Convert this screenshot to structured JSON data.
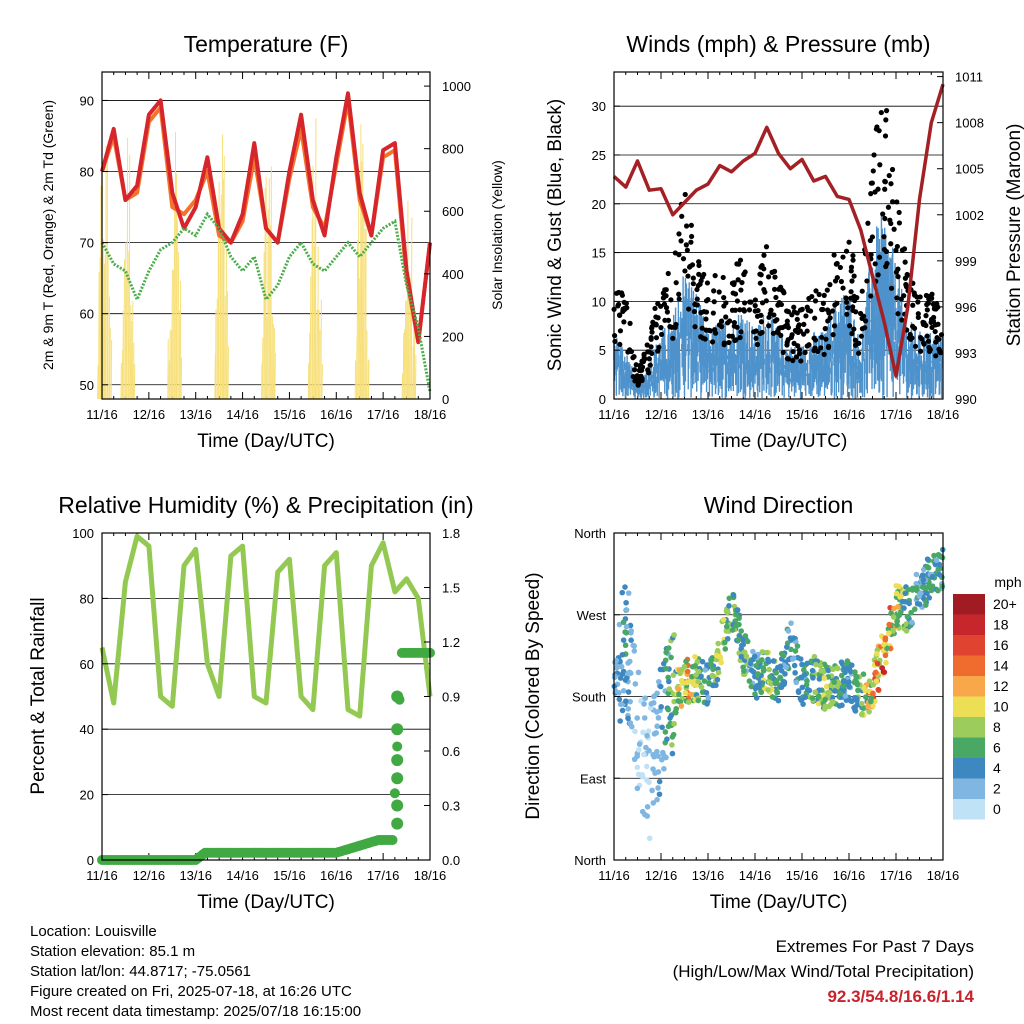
{
  "footer": {
    "location": "Location: Louisville",
    "elevation": "Station elevation: 85.1 m",
    "latlon": "Station lat/lon: 44.8717; -75.0561",
    "created": "Figure created on Fri, 2025-07-18, at 16:26 UTC",
    "recent": "Most recent data timestamp: 2025/07/18 16:15:00",
    "extremes_title": "Extremes For Past 7 Days",
    "extremes_sub": "(High/Low/Max Wind/Total Precipitation)",
    "extremes_values": "92.3/54.8/16.6/1.14"
  },
  "colors": {
    "temp2m": "#d6262b",
    "temp9m": "#f4732b",
    "dewpoint": "#4bae4a",
    "solar": "#f7e07a",
    "gust": "#000000",
    "wind": "#4e92cc",
    "pressure": "#a32125",
    "rh": "#93c952",
    "precip": "#41a942"
  },
  "chart_data": [
    {
      "type": "line",
      "title": "Temperature (F)",
      "xlabel": "Time (Day/UTC)",
      "ylabel": "2m & 9m T (Red, Orange) & 2m Td (Green)",
      "ylabel_right": "Solar Insolation (Yellow)",
      "xticks": [
        "11/16",
        "12/16",
        "13/16",
        "14/16",
        "15/16",
        "16/16",
        "17/16",
        "18/16"
      ],
      "ylim": [
        48,
        94
      ],
      "yticks": [
        50,
        60,
        70,
        80,
        90
      ],
      "ylim_right": [
        0,
        1045
      ],
      "yticks_right": [
        0,
        200,
        400,
        600,
        800,
        1000
      ],
      "grid": true,
      "x_days": [
        0,
        0.25,
        0.5,
        0.75,
        1,
        1.25,
        1.5,
        1.75,
        2,
        2.25,
        2.5,
        2.75,
        3,
        3.25,
        3.5,
        3.75,
        4,
        4.25,
        4.5,
        4.75,
        5,
        5.25,
        5.5,
        5.75,
        6,
        6.25,
        6.5,
        6.75,
        7
      ],
      "series": [
        {
          "values": [
            80,
            86,
            76,
            78,
            88,
            90,
            77,
            72,
            75,
            82,
            72,
            70,
            74,
            84,
            72,
            70,
            80,
            88,
            76,
            71,
            82,
            91,
            77,
            71,
            83,
            84,
            66,
            56,
            70
          ]
        },
        {
          "values": [
            80,
            85,
            76,
            77,
            87,
            89,
            75,
            74,
            76,
            80,
            71,
            70,
            73,
            82,
            72,
            70,
            79,
            86,
            75,
            72,
            81,
            90,
            76,
            71,
            82,
            83,
            65,
            56,
            70
          ]
        },
        {
          "values": [
            70,
            67,
            66,
            62,
            66,
            69,
            70,
            72,
            71,
            74,
            72,
            68,
            66,
            68,
            62,
            64,
            68,
            70,
            67,
            66,
            68,
            70,
            68,
            70,
            72,
            73,
            64,
            58,
            49
          ]
        }
      ],
      "solar_peaks": [
        0.05,
        0.55,
        1.55,
        2.55,
        3.55,
        4.55,
        5.55,
        6.55
      ],
      "solar_values": [
        1000,
        920,
        960,
        940,
        910,
        980,
        940,
        700
      ]
    },
    {
      "type": "scatter",
      "title": "Winds (mph) & Pressure (mb)",
      "xlabel": "Time (Day/UTC)",
      "ylabel": "Sonic Wind & Gust (Blue, Black)",
      "ylabel_right": "Station Pressure (Maroon)",
      "xticks": [
        "11/16",
        "12/16",
        "13/16",
        "14/16",
        "15/16",
        "16/16",
        "17/16",
        "18/16"
      ],
      "ylim": [
        0,
        33.5
      ],
      "yticks": [
        0,
        5,
        10,
        15,
        20,
        25,
        30
      ],
      "ylim_right": [
        990,
        1011.3
      ],
      "yticks_right": [
        990,
        993,
        996,
        999,
        1002,
        1005,
        1008,
        1011
      ],
      "grid": true,
      "x_days": [
        0,
        0.25,
        0.5,
        0.75,
        1,
        1.25,
        1.5,
        1.75,
        2,
        2.25,
        2.5,
        2.75,
        3,
        3.25,
        3.5,
        3.75,
        4,
        4.25,
        4.5,
        4.75,
        5,
        5.25,
        5.5,
        5.75,
        6,
        6.25,
        6.5,
        6.75,
        7
      ],
      "gust_level": [
        10,
        8,
        2,
        5,
        9,
        10,
        17,
        11,
        9,
        10,
        10,
        11,
        8,
        12,
        9,
        7,
        7,
        9,
        8,
        12,
        13,
        7,
        20,
        24,
        16,
        10,
        8,
        8,
        8
      ],
      "wind_level": [
        5,
        4,
        1,
        3,
        5,
        6,
        10,
        8,
        5,
        6,
        6,
        7,
        5,
        7,
        5,
        4,
        4,
        5,
        5,
        8,
        8,
        4,
        12,
        14,
        10,
        6,
        5,
        5,
        5
      ],
      "pressure": [
        1004.5,
        1003.8,
        1005.5,
        1003.6,
        1003.7,
        1002.0,
        1002.8,
        1003.6,
        1004.0,
        1005.2,
        1004.8,
        1005.5,
        1006.0,
        1007.7,
        1006.0,
        1005.0,
        1005.6,
        1004.2,
        1004.5,
        1003.2,
        1003.0,
        1001.0,
        998.0,
        995.0,
        991.5,
        996.0,
        1003.0,
        1008.0,
        1010.5
      ]
    },
    {
      "type": "line",
      "title": "Relative Humidity (%) & Precipitation (in)",
      "xlabel": "Time (Day/UTC)",
      "ylabel": "Percent & Total Rainfall",
      "xticks": [
        "11/16",
        "12/16",
        "13/16",
        "14/16",
        "15/16",
        "16/16",
        "17/16",
        "18/16"
      ],
      "ylim": [
        0,
        100
      ],
      "yticks": [
        0,
        20,
        40,
        60,
        80,
        100
      ],
      "ylim_right": [
        0,
        1.8
      ],
      "yticks_right": [
        "0.0",
        "0.3",
        "0.6",
        "0.9",
        "1.2",
        "1.5",
        "1.8"
      ],
      "grid": true,
      "x_days": [
        0,
        0.25,
        0.5,
        0.75,
        1,
        1.25,
        1.5,
        1.75,
        2,
        2.25,
        2.5,
        2.75,
        3,
        3.25,
        3.5,
        3.75,
        4,
        4.25,
        4.5,
        4.75,
        5,
        5.25,
        5.5,
        5.75,
        6,
        6.25,
        6.5,
        6.75,
        7
      ],
      "rh": [
        65,
        48,
        85,
        99,
        96,
        50,
        47,
        90,
        95,
        60,
        50,
        93,
        96,
        50,
        48,
        88,
        92,
        50,
        46,
        90,
        94,
        46,
        44,
        90,
        97,
        82,
        86,
        80,
        50
      ],
      "precip_x": [
        0,
        1,
        2,
        2.2,
        3,
        4,
        5,
        5.9,
        6.2,
        6.4,
        6.6,
        7
      ],
      "precip": [
        0.0,
        0.0,
        0.0,
        0.04,
        0.04,
        0.04,
        0.04,
        0.11,
        0.11,
        1.14,
        1.14,
        1.14
      ]
    },
    {
      "type": "scatter",
      "title": "Wind Direction",
      "xlabel": "Time (Day/UTC)",
      "ylabel": "Direction (Colored By Speed)",
      "xticks": [
        "11/16",
        "12/16",
        "13/16",
        "14/16",
        "15/16",
        "16/16",
        "17/16",
        "18/16"
      ],
      "yticks": [
        "North",
        "East",
        "South",
        "West",
        "North"
      ],
      "ylim": [
        0,
        360
      ],
      "grid": true,
      "x_days": [
        0,
        0.25,
        0.5,
        0.75,
        1,
        1.25,
        1.5,
        1.75,
        2,
        2.25,
        2.5,
        2.75,
        3,
        3.25,
        3.5,
        3.75,
        4,
        4.25,
        4.5,
        4.75,
        5,
        5.25,
        5.5,
        5.75,
        6,
        6.25,
        6.5,
        6.75,
        7
      ],
      "direction": [
        190,
        250,
        140,
        90,
        150,
        180,
        195,
        200,
        190,
        230,
        280,
        230,
        200,
        210,
        195,
        240,
        195,
        200,
        190,
        190,
        200,
        180,
        190,
        230,
        280,
        275,
        300,
        310,
        320
      ],
      "speed": [
        3,
        4,
        1,
        1,
        3,
        6,
        12,
        7,
        4,
        8,
        6,
        6,
        4,
        8,
        5,
        4,
        4,
        6,
        8,
        6,
        4,
        6,
        12,
        14,
        10,
        6,
        4,
        5,
        4
      ],
      "colorbar": {
        "title": "mph",
        "labels": [
          "20+",
          "18",
          "16",
          "14",
          "12",
          "10",
          "8",
          "6",
          "4",
          "2",
          "0"
        ],
        "colors": [
          "#a11c22",
          "#c5272d",
          "#e0432f",
          "#ef6b2e",
          "#f8a84a",
          "#ecdf55",
          "#9ccc5c",
          "#4aa865",
          "#3e88c2",
          "#7fb7e2",
          "#bfe2f6"
        ]
      }
    }
  ]
}
